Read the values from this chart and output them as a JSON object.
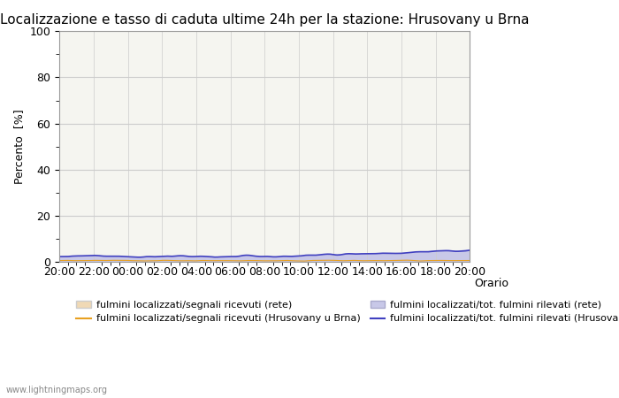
{
  "title": "Localizzazione e tasso di caduta ultime 24h per la stazione: Hrusovany u Brna",
  "ylabel": "Percento  [%]",
  "xlabel_right": "Orario",
  "watermark": "www.lightningmaps.org",
  "ylim": [
    0,
    100
  ],
  "yticks": [
    0,
    20,
    40,
    60,
    80,
    100
  ],
  "yticks_minor": [
    10,
    30,
    50,
    70,
    90
  ],
  "x_labels": [
    "20:00",
    "22:00",
    "00:00",
    "02:00",
    "04:00",
    "06:00",
    "08:00",
    "10:00",
    "12:00",
    "14:00",
    "16:00",
    "18:00",
    "20:00"
  ],
  "bg_color": "#ffffff",
  "plot_bg_color": "#f5f5f0",
  "grid_color": "#cccccc",
  "fill_rete_color": "#f0d9b5",
  "fill_hrusovany_color": "#c8c8e8",
  "line_rete_color": "#e8a020",
  "line_hrusovany_color": "#4040c0",
  "legend_labels": [
    "fulmini localizzati/segnali ricevuti (rete)",
    "fulmini localizzati/segnali ricevuti (Hrusovany u Brna)",
    "fulmini localizzati/tot. fulmini rilevati (rete)",
    "fulmini localizzati/tot. fulmini rilevati (Hrusovany u Brna)"
  ],
  "title_fontsize": 11,
  "axis_fontsize": 9,
  "legend_fontsize": 8
}
